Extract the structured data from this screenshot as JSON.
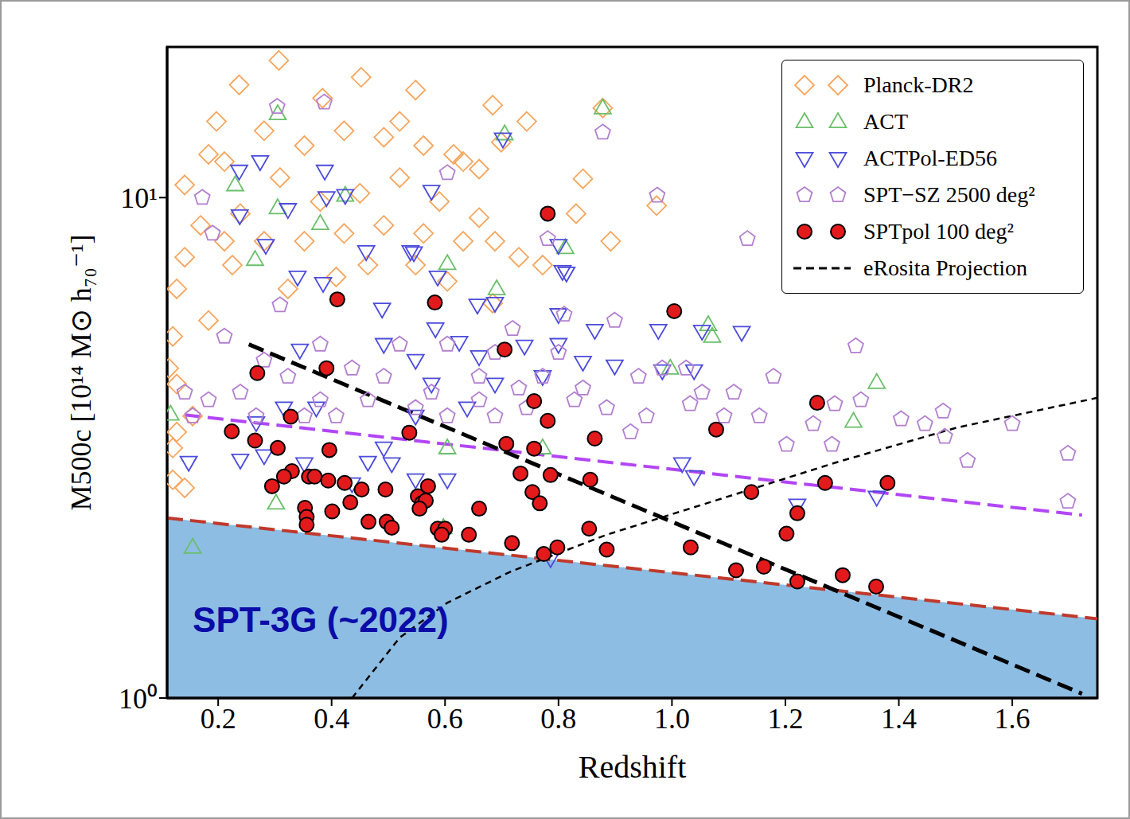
{
  "chart_data": {
    "type": "scatter",
    "xlabel": "Redshift",
    "ylabel": "M500c [10¹⁴ M⊙ h₇₀⁻¹]",
    "xlim": [
      0.11,
      1.75
    ],
    "ylim": [
      1,
      20
    ],
    "xticks": [
      0.2,
      0.4,
      0.6,
      0.8,
      {
        "value": 1.0,
        "label": "1.0"
      },
      1.2,
      1.4,
      1.6
    ],
    "yticks": [
      {
        "value": 1,
        "label": "10⁰"
      },
      {
        "value": 10,
        "label": "10¹"
      }
    ],
    "log": "y",
    "legend": "upper right",
    "series": [
      {
        "type": "area",
        "color": "#8dbde3",
        "x": [
          0.11,
          1.75
        ],
        "values": [
          2.29,
          1.44
        ]
      },
      {
        "name": "Planck-DR2",
        "type": "scatter",
        "color": "#f7a55c",
        "marker": "diamond",
        "x": [
          0.307,
          0.237,
          0.452,
          0.384,
          0.548,
          0.684,
          0.878,
          0.744,
          0.699,
          0.615,
          0.843,
          0.831,
          0.892,
          0.973,
          0.772,
          0.684,
          0.548,
          0.408,
          0.323,
          0.225,
          0.127,
          0.12,
          0.127,
          0.12,
          0.141,
          0.12,
          0.183,
          0.239,
          0.309,
          0.38,
          0.45,
          0.52,
          0.59,
          0.66,
          0.73,
          0.197,
          0.281,
          0.352,
          0.422,
          0.492,
          0.562,
          0.632,
          0.141,
          0.169,
          0.211,
          0.281,
          0.352,
          0.422,
          0.492,
          0.562,
          0.632,
          0.688,
          0.464,
          0.604,
          0.141,
          0.183,
          0.113,
          0.155,
          0.127,
          0.66,
          0.52,
          0.211
        ],
        "values": [
          18.8,
          16.8,
          17.4,
          15.8,
          16.4,
          15.3,
          15.1,
          14.2,
          12.9,
          12.2,
          10.9,
          9.29,
          8.18,
          9.64,
          7.33,
          6.15,
          7.33,
          6.94,
          6.57,
          7.33,
          6.57,
          5.28,
          4.24,
          3.16,
          2.63,
          2.73,
          12.2,
          9.29,
          10.96,
          9.82,
          10.2,
          10.96,
          9.82,
          9.12,
          7.6,
          14.2,
          13.6,
          12.7,
          13.6,
          13.2,
          12.7,
          11.8,
          10.6,
          8.8,
          8.18,
          8.18,
          8.18,
          8.48,
          8.8,
          8.48,
          8.18,
          8.18,
          7.33,
          6.8,
          7.6,
          5.68,
          4.56,
          3.66,
          3.4,
          11.4,
          14.2,
          11.8
        ]
      },
      {
        "name": "ACT",
        "type": "scatter",
        "color": "#6abf69",
        "marker": "triangle-up",
        "x": [
          0.305,
          0.878,
          0.705,
          0.23,
          0.305,
          0.424,
          0.38,
          0.812,
          0.265,
          0.604,
          0.691,
          1.064,
          1.071,
          0.997,
          1.361,
          1.32,
          0.604,
          0.302,
          0.597,
          0.155,
          0.772,
          0.116
        ],
        "values": [
          14.7,
          15.1,
          13.4,
          10.6,
          9.54,
          10.1,
          8.87,
          7.94,
          7.52,
          7.38,
          6.57,
          5.57,
          5.28,
          4.56,
          4.27,
          3.57,
          3.16,
          2.45,
          2.19,
          2.0,
          3.16,
          3.69
        ]
      },
      {
        "name": "ACTPol-ED56",
        "type": "scatter",
        "color": "#4b4bdc",
        "marker": "triangle-down",
        "x": [
          0.702,
          0.274,
          0.237,
          0.388,
          0.576,
          0.424,
          0.391,
          0.238,
          0.323,
          0.539,
          0.545,
          0.461,
          0.807,
          0.587,
          0.34,
          0.284,
          0.385,
          0.489,
          0.657,
          0.688,
          0.583,
          0.625,
          0.8,
          0.864,
          0.976,
          1.053,
          1.123,
          0.344,
          0.492,
          0.548,
          0.66,
          0.74,
          0.8,
          0.843,
          0.983,
          1.039,
          0.899,
          0.576,
          0.688,
          0.772,
          0.639,
          0.548,
          0.492,
          0.464,
          0.506,
          0.352,
          0.281,
          0.239,
          0.148,
          0.604,
          0.436,
          0.548,
          1.039,
          1.018,
          1.221,
          1.361,
          0.786,
          0.267,
          0.316,
          0.373,
          0.8,
          0.814
        ],
        "values": [
          13.1,
          11.8,
          11.3,
          11.3,
          10.3,
          10.1,
          10.0,
          9.2,
          9.47,
          7.8,
          7.76,
          7.8,
          7.12,
          6.94,
          6.94,
          8.03,
          6.74,
          5.99,
          6.1,
          6.15,
          5.47,
          5.14,
          5.84,
          5.43,
          5.43,
          5.41,
          5.38,
          4.96,
          5.09,
          4.73,
          4.81,
          5.05,
          5.09,
          4.69,
          4.51,
          4.51,
          4.61,
          4.24,
          4.24,
          4.39,
          3.8,
          3.66,
          3.16,
          2.96,
          2.94,
          2.94,
          3.05,
          2.99,
          2.96,
          2.73,
          2.68,
          2.73,
          2.77,
          2.94,
          2.43,
          2.52,
          1.9,
          3.55,
          3.8,
          3.8,
          8.03,
          7.07
        ]
      },
      {
        "name": "SPT−SZ 2500 deg²",
        "type": "scatter",
        "color": "#b27fcf",
        "marker": "pentagon",
        "x": [
          0.304,
          0.387,
          0.878,
          0.974,
          0.781,
          1.133,
          1.324,
          1.179,
          1.404,
          1.478,
          1.521,
          1.698,
          1.698,
          1.481,
          1.333,
          1.287,
          1.282,
          1.202,
          1.154,
          1.109,
          1.053,
          1.025,
          0.983,
          0.941,
          0.899,
          0.81,
          0.719,
          0.66,
          0.604,
          0.548,
          0.492,
          0.436,
          0.38,
          0.323,
          0.281,
          0.239,
          0.183,
          0.155,
          0.141,
          0.211,
          0.309,
          0.38,
          0.52,
          0.604,
          0.688,
          0.772,
          0.828,
          0.885,
          0.927,
          0.955,
          0.8,
          0.73,
          0.66,
          0.576,
          0.464,
          0.408,
          0.352,
          0.267,
          0.604,
          0.172,
          0.19,
          0.843,
          1.032,
          1.092,
          1.446,
          1.6,
          1.249,
          0.744,
          0.688
        ],
        "values": [
          15.2,
          15.5,
          13.5,
          10.1,
          8.27,
          8.27,
          5.05,
          4.39,
          3.61,
          3.74,
          2.98,
          3.08,
          2.47,
          3.33,
          3.94,
          3.87,
          3.21,
          3.21,
          3.66,
          4.08,
          4.08,
          4.56,
          4.56,
          4.39,
          5.68,
          5.84,
          5.47,
          4.39,
          3.66,
          3.8,
          4.39,
          4.56,
          3.94,
          4.39,
          4.73,
          4.08,
          3.94,
          3.66,
          4.08,
          5.28,
          6.1,
          5.09,
          5.09,
          5.09,
          4.9,
          4.39,
          3.94,
          3.8,
          3.4,
          3.66,
          4.9,
          4.16,
          3.94,
          4.08,
          3.94,
          3.66,
          3.66,
          3.66,
          11.2,
          10.0,
          8.48,
          4.16,
          3.87,
          3.66,
          3.53,
          3.53,
          3.53,
          3.8,
          3.66
        ]
      },
      {
        "type": "line",
        "color": "#b246f5",
        "line_style": "dashed",
        "x": [
          0.141,
          1.723
        ],
        "values": [
          3.68,
          2.32
        ]
      },
      {
        "type": "line",
        "color": "#c0392b",
        "line_style": "dashed",
        "x": [
          0.11,
          1.75
        ],
        "values": [
          2.29,
          1.44
        ]
      },
      {
        "name": "SPTpol 100 deg²",
        "type": "scatter",
        "color": "#e31a1c",
        "marker": "circle",
        "x": [
          0.41,
          0.582,
          1.004,
          0.705,
          0.391,
          0.269,
          0.757,
          1.256,
          0.781,
          0.328,
          1.078,
          0.537,
          0.864,
          0.224,
          0.265,
          0.708,
          0.757,
          0.396,
          0.305,
          0.33,
          0.295,
          0.36,
          0.37,
          0.394,
          0.423,
          0.453,
          0.495,
          0.57,
          0.316,
          0.353,
          0.356,
          0.356,
          0.401,
          0.433,
          0.465,
          0.497,
          0.506,
          0.552,
          0.559,
          0.566,
          0.555,
          0.587,
          0.6,
          0.594,
          0.66,
          0.642,
          0.718,
          0.754,
          0.767,
          0.786,
          0.733,
          0.856,
          0.854,
          0.774,
          0.798,
          0.885,
          1.033,
          1.14,
          1.27,
          1.38,
          1.221,
          1.202,
          1.113,
          1.162,
          1.221,
          1.301,
          1.36,
          0.781
        ],
        "values": [
          6.26,
          6.17,
          5.93,
          4.97,
          4.56,
          4.46,
          3.92,
          3.89,
          3.58,
          3.65,
          3.44,
          3.39,
          3.3,
          3.41,
          3.27,
          3.22,
          3.15,
          3.13,
          3.16,
          2.84,
          2.65,
          2.77,
          2.77,
          2.72,
          2.69,
          2.61,
          2.61,
          2.65,
          2.77,
          2.4,
          2.3,
          2.22,
          2.36,
          2.46,
          2.25,
          2.25,
          2.19,
          2.53,
          2.45,
          2.48,
          2.39,
          2.18,
          2.18,
          2.12,
          2.39,
          2.12,
          2.04,
          2.58,
          2.45,
          2.79,
          2.81,
          2.73,
          2.18,
          1.94,
          2.0,
          1.98,
          2.0,
          2.58,
          2.69,
          2.69,
          2.34,
          2.13,
          1.8,
          1.83,
          1.71,
          1.76,
          1.67,
          9.29
        ]
      },
      {
        "type": "line",
        "color": "#000000",
        "line_style": "fine-dashed",
        "x": [
          0.436,
          0.52,
          0.604,
          0.716,
          0.885,
          1.081,
          1.291,
          1.502,
          1.75
        ],
        "values": [
          1.0,
          1.32,
          1.55,
          1.79,
          2.12,
          2.49,
          2.96,
          3.47,
          3.98
        ]
      },
      {
        "name": "eRosita Projection",
        "type": "line",
        "color": "#000000",
        "line_style": "dashed",
        "x": [
          0.254,
          1.723
        ],
        "values": [
          5.09,
          1.02
        ]
      }
    ],
    "annotations": [
      {
        "text": "SPT-3G (~2022)",
        "x": 0.155,
        "y": 1.415,
        "color": "#0b0ba8"
      }
    ]
  }
}
